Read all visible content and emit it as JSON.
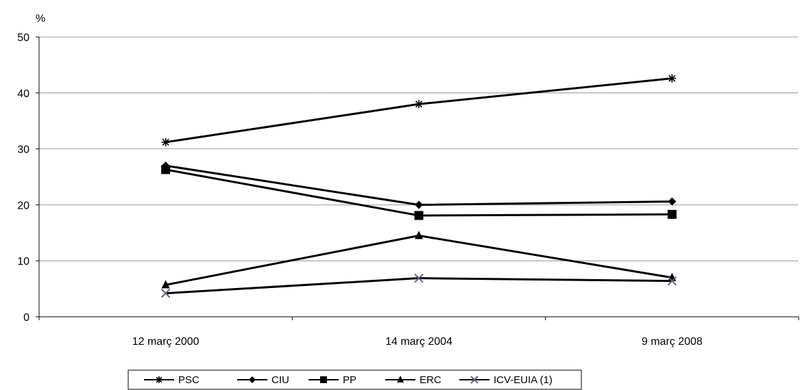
{
  "chart_data": {
    "type": "line",
    "ylabel": "%",
    "ylim": [
      0,
      50
    ],
    "yticks": [
      0,
      10,
      20,
      30,
      40,
      50
    ],
    "grid": "horizontal-dotted",
    "legend_placement": "bottom",
    "categories": [
      "12 març 2000",
      "14 març 2004",
      "9 març 2008"
    ],
    "series": [
      {
        "name": "PSC",
        "values": [
          31.2,
          38.0,
          42.6
        ],
        "marker": "asterisk",
        "color": "#000000"
      },
      {
        "name": "CIU",
        "values": [
          27.0,
          20.0,
          20.6
        ],
        "marker": "diamond",
        "color": "#000000"
      },
      {
        "name": "PP",
        "values": [
          26.3,
          18.1,
          18.3
        ],
        "marker": "square",
        "color": "#000000"
      },
      {
        "name": "ERC",
        "values": [
          5.7,
          14.5,
          7.0
        ],
        "marker": "triangle",
        "color": "#000000"
      },
      {
        "name": "ICV-EUIA (1)",
        "values": [
          4.2,
          6.9,
          6.4
        ],
        "marker": "x",
        "color": "#000000",
        "marker_color": "#6b5a8a"
      }
    ]
  }
}
